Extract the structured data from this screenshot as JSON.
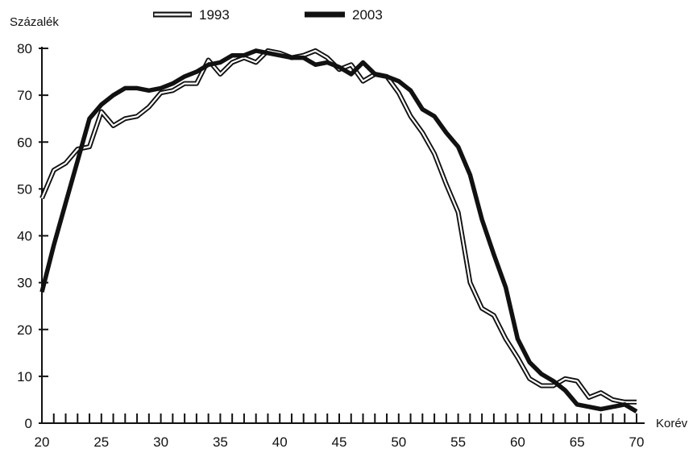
{
  "chart_data": {
    "type": "line",
    "title": "",
    "ylabel": "Százalék",
    "xlabel": "Korév",
    "xlim": [
      20,
      70
    ],
    "ylim": [
      0,
      80
    ],
    "x_ticks": [
      20,
      25,
      30,
      35,
      40,
      45,
      50,
      55,
      60,
      65,
      70
    ],
    "y_ticks": [
      0,
      10,
      20,
      30,
      40,
      50,
      60,
      70,
      80
    ],
    "grid": false,
    "legend_position": "top-center",
    "x": [
      20,
      21,
      22,
      23,
      24,
      25,
      26,
      27,
      28,
      29,
      30,
      31,
      32,
      33,
      34,
      35,
      36,
      37,
      38,
      39,
      40,
      41,
      42,
      43,
      44,
      45,
      46,
      47,
      48,
      49,
      50,
      51,
      52,
      53,
      54,
      55,
      56,
      57,
      58,
      59,
      60,
      61,
      62,
      63,
      64,
      65,
      66,
      67,
      68,
      69,
      70
    ],
    "series": [
      {
        "name": "1993",
        "style": "double",
        "values": [
          48,
          54,
          55.5,
          58.5,
          59,
          66.5,
          63.5,
          65,
          65.5,
          67.5,
          70.5,
          71,
          72.5,
          72.5,
          77.5,
          74.5,
          77,
          78,
          77,
          79.5,
          79,
          78,
          78.5,
          79.5,
          78,
          75.5,
          76.5,
          73,
          74.5,
          74,
          70.5,
          65.5,
          62,
          57.5,
          51,
          45,
          30,
          24.5,
          23,
          18,
          14,
          9.5,
          8,
          8,
          9.5,
          9,
          5.5,
          6.5,
          5,
          4.5,
          4.5
        ]
      },
      {
        "name": "2003",
        "style": "thick",
        "values": [
          28,
          38,
          47,
          56,
          65,
          68,
          70,
          71.5,
          71.5,
          71,
          71.5,
          72.5,
          74,
          75,
          76.5,
          77,
          78.5,
          78.5,
          79.5,
          79,
          78.5,
          78,
          78,
          76.5,
          77,
          76,
          74.5,
          77,
          74.5,
          74,
          73,
          71,
          67,
          65.5,
          62,
          59,
          53,
          43.5,
          36,
          29,
          18,
          13,
          10.5,
          9,
          7,
          4,
          3.5,
          3,
          3.5,
          4,
          2.5
        ]
      }
    ]
  }
}
